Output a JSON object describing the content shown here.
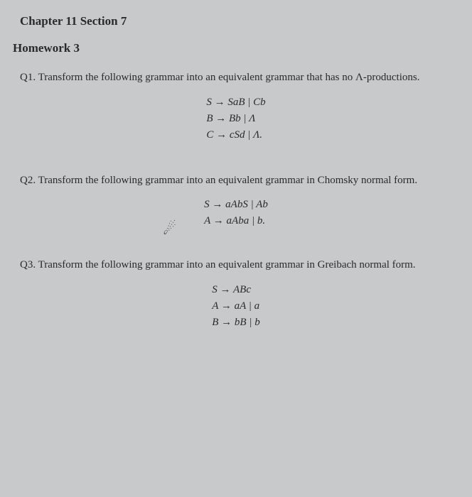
{
  "chapter": "Chapter 11 Section 7",
  "homework": "Homework 3",
  "colors": {
    "background": "#c8c9cb",
    "text": "#2a2a2a"
  },
  "questions": [
    {
      "label": "Q1.",
      "prompt": "Transform the following grammar into an equivalent grammar that has no Λ-productions.",
      "rules": [
        "S → SaB | Cb",
        "B → Bb | Λ",
        "C → cSd | Λ."
      ]
    },
    {
      "label": "Q2.",
      "prompt": "Transform the following grammar into an equivalent grammar in Chomsky normal form.",
      "rules": [
        "S → aAbS | Ab",
        "A → aAba | b."
      ]
    },
    {
      "label": "Q3.",
      "prompt": "Transform the following grammar into an equivalent grammar in Greibach normal form.",
      "rules": [
        "S → ABc",
        "A → aA | a",
        "B → bB | b"
      ]
    }
  ],
  "typography": {
    "title_fontsize": 17,
    "body_fontsize": 15,
    "font_family": "Times New Roman"
  }
}
